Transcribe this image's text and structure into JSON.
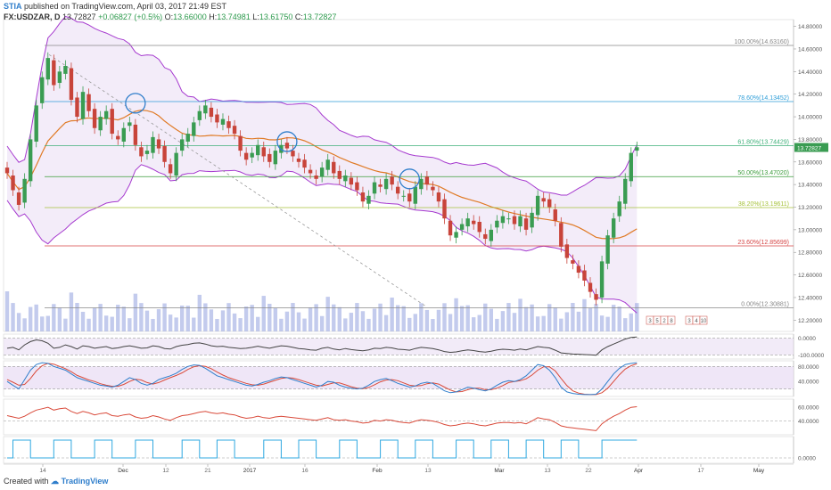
{
  "header": {
    "author": "STIA",
    "published": "published on TradingView.com, April 03, 2017 21:49 EST",
    "symbol": "FX:USDZAR, D",
    "last": "13.72827",
    "change": "+0.06827 (+0.5%)",
    "open_label": "O:",
    "open": "13.66000",
    "high_label": "H:",
    "high": "13.74981",
    "low_label": "L:",
    "low": "13.61750",
    "close_label": "C:",
    "close": "13.72827"
  },
  "footer": {
    "created_with": "Created with",
    "brand": "TradingView"
  },
  "colors": {
    "up": "#3a9c52",
    "down": "#c8443a",
    "bb": "#a63acf",
    "ma": "#e07b27",
    "blue": "#2f7ecb",
    "fill": "#e9ddf4"
  },
  "chart_data": [
    {
      "type": "candlestick",
      "title": "",
      "x_ticks": [
        "14",
        "Dec",
        "12",
        "21",
        "2017",
        "16",
        "Feb",
        "13",
        "Mar",
        "13",
        "22",
        "Apr",
        "17",
        "May"
      ],
      "y_ticks": [
        "14.80000",
        "14.60000",
        "14.40000",
        "14.20000",
        "14.00000",
        "13.80000",
        "13.60000",
        "13.40000",
        "13.20000",
        "13.00000",
        "12.80000",
        "12.60000",
        "12.40000",
        "12.20000"
      ],
      "ylim": [
        12.1,
        14.86
      ],
      "last_price_badge": "13.72827",
      "fib_levels": [
        {
          "label": "100.00%(14.63160)",
          "value": 14.6316,
          "color": "#888888"
        },
        {
          "label": "78.60%(14.13452)",
          "value": 14.13452,
          "color": "#2f9ed8"
        },
        {
          "label": "61.80%(13.74429)",
          "value": 13.74429,
          "color": "#3fb07a"
        },
        {
          "label": "50.00%(13.47020)",
          "value": 13.4702,
          "color": "#3b9c3b"
        },
        {
          "label": "38.20%(13.19611)",
          "value": 13.19611,
          "color": "#a6c23a"
        },
        {
          "label": "23.60%(12.85699)",
          "value": 12.85699,
          "color": "#d64545"
        },
        {
          "label": "0.00%(12.30881)",
          "value": 12.30881,
          "color": "#888888"
        }
      ],
      "annotation_labels": [
        "3",
        "5",
        "2",
        "8",
        "3",
        "4",
        "10"
      ],
      "close_values": [
        13.5,
        13.35,
        13.22,
        13.45,
        13.8,
        14.1,
        14.35,
        14.52,
        14.28,
        14.4,
        14.45,
        14.15,
        14.0,
        14.22,
        14.05,
        13.9,
        14.0,
        14.05,
        13.85,
        13.8,
        13.9,
        13.95,
        13.75,
        13.65,
        13.7,
        13.82,
        13.72,
        13.6,
        13.5,
        13.68,
        13.8,
        13.85,
        13.95,
        14.05,
        14.1,
        14.0,
        13.95,
        13.98,
        13.9,
        13.85,
        13.7,
        13.62,
        13.68,
        13.75,
        13.65,
        13.6,
        13.7,
        13.75,
        13.72,
        13.65,
        13.6,
        13.55,
        13.5,
        13.45,
        13.55,
        13.62,
        13.5,
        13.45,
        13.48,
        13.4,
        13.35,
        13.25,
        13.3,
        13.42,
        13.38,
        13.45,
        13.4,
        13.32,
        13.3,
        13.25,
        13.38,
        13.45,
        13.4,
        13.35,
        13.25,
        13.1,
        12.95,
        12.98,
        13.05,
        13.1,
        13.05,
        12.98,
        12.92,
        13.0,
        13.08,
        13.12,
        13.1,
        13.05,
        13.12,
        13.0,
        13.15,
        13.3,
        13.25,
        13.2,
        13.08,
        12.85,
        12.75,
        12.7,
        12.62,
        12.55,
        12.45,
        12.38,
        12.72,
        12.95,
        13.1,
        13.25,
        13.45,
        13.68,
        13.73
      ]
    },
    {
      "type": "line",
      "title": "",
      "y_ticks": [
        "0.0000",
        "-100.0000"
      ],
      "ylim": [
        -125,
        25
      ],
      "values": [
        -60,
        -55,
        -70,
        -40,
        -20,
        -10,
        -15,
        -30,
        -60,
        -55,
        -40,
        -50,
        -65,
        -45,
        -50,
        -60,
        -55,
        -50,
        -62,
        -58,
        -50,
        -45,
        -52,
        -60,
        -58,
        -45,
        -50,
        -62,
        -65,
        -50,
        -42,
        -38,
        -30,
        -28,
        -35,
        -45,
        -50,
        -48,
        -55,
        -58,
        -62,
        -60,
        -55,
        -48,
        -55,
        -60,
        -52,
        -45,
        -48,
        -55,
        -62,
        -65,
        -70,
        -72,
        -60,
        -55,
        -65,
        -70,
        -62,
        -68,
        -72,
        -75,
        -70,
        -60,
        -62,
        -55,
        -58,
        -66,
        -68,
        -72,
        -62,
        -55,
        -58,
        -62,
        -70,
        -80,
        -85,
        -82,
        -75,
        -70,
        -74,
        -80,
        -84,
        -78,
        -70,
        -66,
        -68,
        -72,
        -65,
        -70,
        -60,
        -50,
        -55,
        -58,
        -72,
        -88,
        -92,
        -95,
        -96,
        -98,
        -100,
        -102,
        -70,
        -50,
        -35,
        -20,
        -5,
        5,
        8
      ]
    },
    {
      "type": "line",
      "title": "",
      "y_ticks": [
        "80.0000",
        "40.0000"
      ],
      "ylim": [
        0,
        95
      ],
      "overbought": 80,
      "oversold": 20,
      "k_values": [
        40,
        30,
        20,
        45,
        70,
        85,
        90,
        88,
        80,
        75,
        70,
        60,
        50,
        45,
        40,
        35,
        30,
        28,
        25,
        30,
        40,
        50,
        45,
        35,
        30,
        35,
        45,
        50,
        55,
        62,
        72,
        80,
        84,
        83,
        75,
        65,
        55,
        50,
        45,
        40,
        35,
        30,
        28,
        32,
        38,
        42,
        48,
        52,
        50,
        45,
        40,
        35,
        30,
        25,
        30,
        40,
        38,
        30,
        25,
        22,
        20,
        22,
        30,
        40,
        45,
        48,
        42,
        35,
        30,
        25,
        28,
        35,
        38,
        35,
        25,
        15,
        10,
        12,
        18,
        25,
        22,
        18,
        15,
        20,
        30,
        38,
        42,
        40,
        45,
        55,
        70,
        85,
        82,
        70,
        50,
        25,
        12,
        8,
        6,
        5,
        5,
        6,
        20,
        40,
        60,
        75,
        85,
        88,
        90
      ],
      "d_values": [
        45,
        38,
        30,
        32,
        48,
        68,
        82,
        88,
        86,
        80,
        74,
        66,
        56,
        50,
        44,
        40,
        34,
        30,
        27,
        27,
        32,
        40,
        46,
        44,
        37,
        33,
        37,
        44,
        50,
        56,
        63,
        72,
        79,
        82,
        80,
        74,
        65,
        57,
        50,
        45,
        40,
        35,
        31,
        30,
        33,
        38,
        43,
        48,
        50,
        49,
        45,
        40,
        35,
        30,
        28,
        32,
        36,
        36,
        31,
        26,
        22,
        21,
        24,
        31,
        39,
        44,
        45,
        42,
        36,
        30,
        28,
        29,
        34,
        36,
        33,
        25,
        17,
        12,
        13,
        18,
        22,
        22,
        18,
        18,
        22,
        29,
        37,
        40,
        42,
        47,
        57,
        70,
        79,
        79,
        68,
        48,
        29,
        15,
        9,
        6,
        5,
        5,
        10,
        22,
        40,
        58,
        73,
        82,
        87
      ]
    },
    {
      "type": "line",
      "title": "",
      "y_ticks": [
        "60.0000",
        "40.0000"
      ],
      "ylim": [
        20,
        72
      ],
      "values": [
        48,
        46,
        44,
        47,
        52,
        56,
        58,
        60,
        56,
        58,
        59,
        54,
        51,
        54,
        52,
        49,
        51,
        52,
        48,
        47,
        49,
        50,
        46,
        44,
        45,
        48,
        46,
        43,
        41,
        45,
        48,
        49,
        51,
        53,
        54,
        52,
        51,
        52,
        50,
        49,
        46,
        44,
        45,
        47,
        45,
        44,
        46,
        47,
        46,
        45,
        44,
        43,
        42,
        41,
        43,
        45,
        42,
        41,
        42,
        40,
        39,
        37,
        38,
        41,
        40,
        42,
        41,
        39,
        38,
        37,
        40,
        42,
        41,
        40,
        38,
        35,
        33,
        34,
        36,
        37,
        36,
        34,
        33,
        35,
        37,
        38,
        38,
        37,
        38,
        36,
        40,
        45,
        43,
        42,
        38,
        33,
        31,
        30,
        29,
        28,
        27,
        26,
        36,
        42,
        47,
        51,
        56,
        60,
        61
      ]
    },
    {
      "type": "line",
      "title": "",
      "y_ticks": [
        "0.0000"
      ],
      "ylim": [
        -0.3,
        1.2
      ],
      "values": [
        0,
        1,
        1,
        1,
        0,
        0,
        0,
        0,
        1,
        1,
        1,
        0,
        0,
        0,
        0,
        1,
        1,
        1,
        0,
        0,
        0,
        0,
        1,
        1,
        1,
        0,
        0,
        0,
        0,
        0,
        1,
        1,
        1,
        0,
        0,
        0,
        1,
        1,
        1,
        0,
        0,
        0,
        0,
        0,
        1,
        1,
        1,
        0,
        0,
        0,
        1,
        1,
        1,
        0,
        0,
        0,
        0,
        1,
        1,
        1,
        0,
        0,
        0,
        0,
        1,
        1,
        1,
        0,
        0,
        0,
        1,
        1,
        1,
        0,
        0,
        0,
        0,
        1,
        1,
        1,
        0,
        0,
        0,
        1,
        1,
        1,
        0,
        0,
        0,
        1,
        1,
        1,
        0,
        0,
        0,
        1,
        1,
        1,
        0,
        0,
        0,
        0,
        1,
        1,
        1,
        1,
        1,
        1,
        1
      ]
    }
  ]
}
